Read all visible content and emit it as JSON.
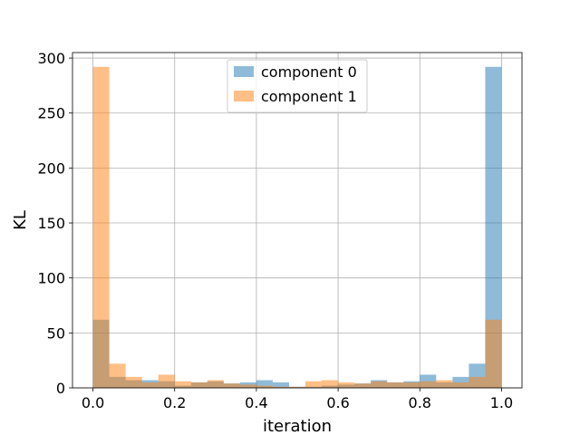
{
  "chart_data": {
    "type": "bar",
    "subtype": "histogram",
    "title": "",
    "xlabel": "iteration",
    "ylabel": "KL",
    "xlim": [
      -0.05,
      1.05
    ],
    "ylim": [
      0,
      305
    ],
    "xticks": [
      0.0,
      0.2,
      0.4,
      0.6,
      0.8,
      1.0
    ],
    "xtick_labels": [
      "0.0",
      "0.2",
      "0.4",
      "0.6",
      "0.8",
      "1.0"
    ],
    "yticks": [
      0,
      50,
      100,
      150,
      200,
      250,
      300
    ],
    "ytick_labels": [
      "0",
      "50",
      "100",
      "150",
      "200",
      "250",
      "300"
    ],
    "grid": true,
    "legend_position": "top-center",
    "bins": 25,
    "bin_range": [
      0,
      1
    ],
    "series": [
      {
        "name": "component 0",
        "color": "#1f77b4",
        "alpha": 0.5,
        "values": [
          62,
          10,
          7,
          7,
          6,
          2,
          5,
          6,
          4,
          5,
          7,
          5,
          1,
          1,
          2,
          3,
          4,
          7,
          5,
          6,
          12,
          5,
          10,
          22,
          292
        ]
      },
      {
        "name": "component 1",
        "color": "#ff7f0e",
        "alpha": 0.5,
        "values": [
          292,
          22,
          10,
          5,
          12,
          6,
          5,
          7,
          4,
          3,
          2,
          1,
          1,
          6,
          7,
          5,
          4,
          6,
          5,
          5,
          6,
          7,
          5,
          10,
          62
        ]
      }
    ]
  }
}
